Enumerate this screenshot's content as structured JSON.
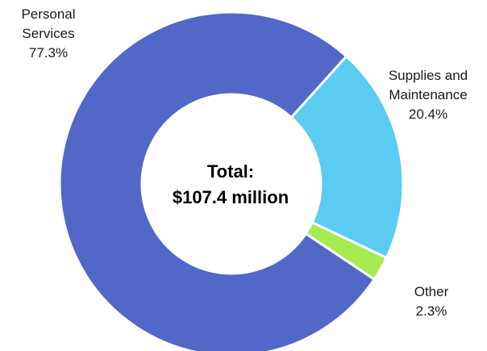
{
  "chart_data": {
    "type": "pie",
    "style": "donut",
    "center_label": {
      "line1": "Total:",
      "line2": "$107.4 million"
    },
    "slices": [
      {
        "name": "Supplies and Maintenance",
        "name_lines": [
          "Supplies and",
          "Maintenance"
        ],
        "value": 20.4,
        "label": "20.4%",
        "color": "#5BCBF2"
      },
      {
        "name": "Other",
        "name_lines": [
          "Other"
        ],
        "value": 2.3,
        "label": "2.3%",
        "color": "#A6EB52"
      },
      {
        "name": "Personal Services",
        "name_lines": [
          "Personal",
          "Services"
        ],
        "value": 77.3,
        "label": "77.3%",
        "color": "#5268C8"
      }
    ]
  }
}
